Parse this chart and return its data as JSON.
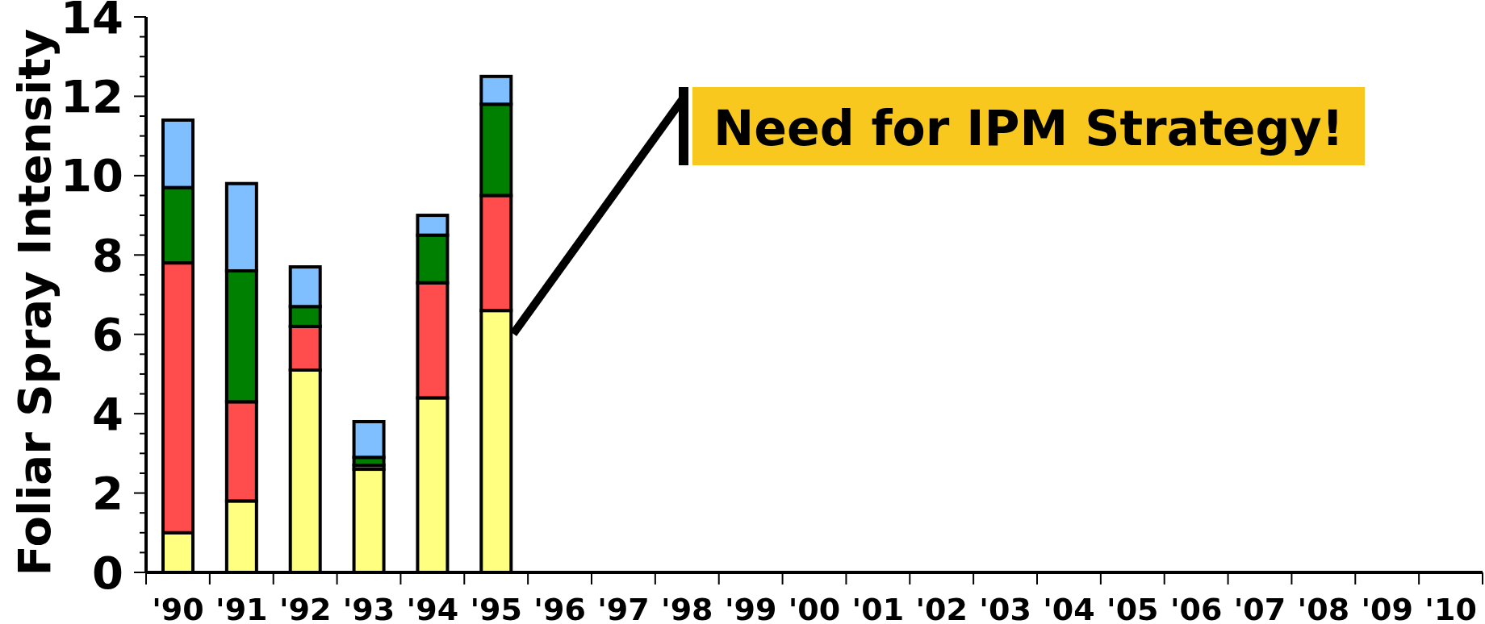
{
  "chart_data": {
    "type": "bar",
    "stacked": true,
    "ylabel": "Foliar Spray Intensity",
    "categories": [
      "'90",
      "'91",
      "'92",
      "'93",
      "'94",
      "'95",
      "'96",
      "'97",
      "'98",
      "'99",
      "'00",
      "'01",
      "'02",
      "'03",
      "'04",
      "'05",
      "'06",
      "'07",
      "'08",
      "'09",
      "'10"
    ],
    "series": [
      {
        "color": "#ffff80",
        "values": [
          1.0,
          1.8,
          5.1,
          2.6,
          4.4,
          6.6,
          0,
          0,
          0,
          0,
          0,
          0,
          0,
          0,
          0,
          0,
          0,
          0,
          0,
          0,
          0
        ]
      },
      {
        "color": "#ff4d4d",
        "values": [
          6.8,
          2.5,
          1.1,
          0.1,
          2.9,
          2.9,
          null,
          null,
          null,
          null,
          null,
          null,
          null,
          null,
          null,
          null,
          null,
          null,
          null,
          null,
          null
        ]
      },
      {
        "color": "#008000",
        "values": [
          1.9,
          3.3,
          0.5,
          0.2,
          1.2,
          2.3,
          null,
          null,
          null,
          null,
          null,
          null,
          null,
          null,
          null,
          null,
          null,
          null,
          null,
          null,
          null
        ]
      },
      {
        "color": "#80bfff",
        "values": [
          1.7,
          2.2,
          1.0,
          0.9,
          0.5,
          0.7,
          null,
          null,
          null,
          null,
          null,
          null,
          null,
          null,
          null,
          null,
          null,
          null,
          null,
          null,
          null
        ]
      }
    ],
    "ylim": [
      0,
      14
    ],
    "yticks": [
      0,
      {
        "value": 0.5,
        "label": null
      },
      {
        "value": 1,
        "label": null
      },
      {
        "value": 1.5,
        "label": null
      },
      2,
      {
        "value": 2.5,
        "label": null
      },
      {
        "value": 3,
        "label": null
      },
      {
        "value": 3.5,
        "label": null
      },
      4,
      {
        "value": 4.5,
        "label": null
      },
      {
        "value": 5,
        "label": null
      },
      {
        "value": 5.5,
        "label": null
      },
      6,
      {
        "value": 6.5,
        "label": null
      },
      {
        "value": 7,
        "label": null
      },
      {
        "value": 7.5,
        "label": null
      },
      8,
      {
        "value": 8.5,
        "label": null
      },
      {
        "value": 9,
        "label": null
      },
      {
        "value": 9.5,
        "label": null
      },
      10,
      {
        "value": 10.5,
        "label": null
      },
      {
        "value": 11,
        "label": null
      },
      {
        "value": 11.5,
        "label": null
      },
      12,
      {
        "value": 12.5,
        "label": null
      },
      {
        "value": 13,
        "label": null
      },
      {
        "value": 13.5,
        "label": null
      },
      14
    ],
    "annotations": [
      "Need for IPM Strategy!"
    ]
  }
}
